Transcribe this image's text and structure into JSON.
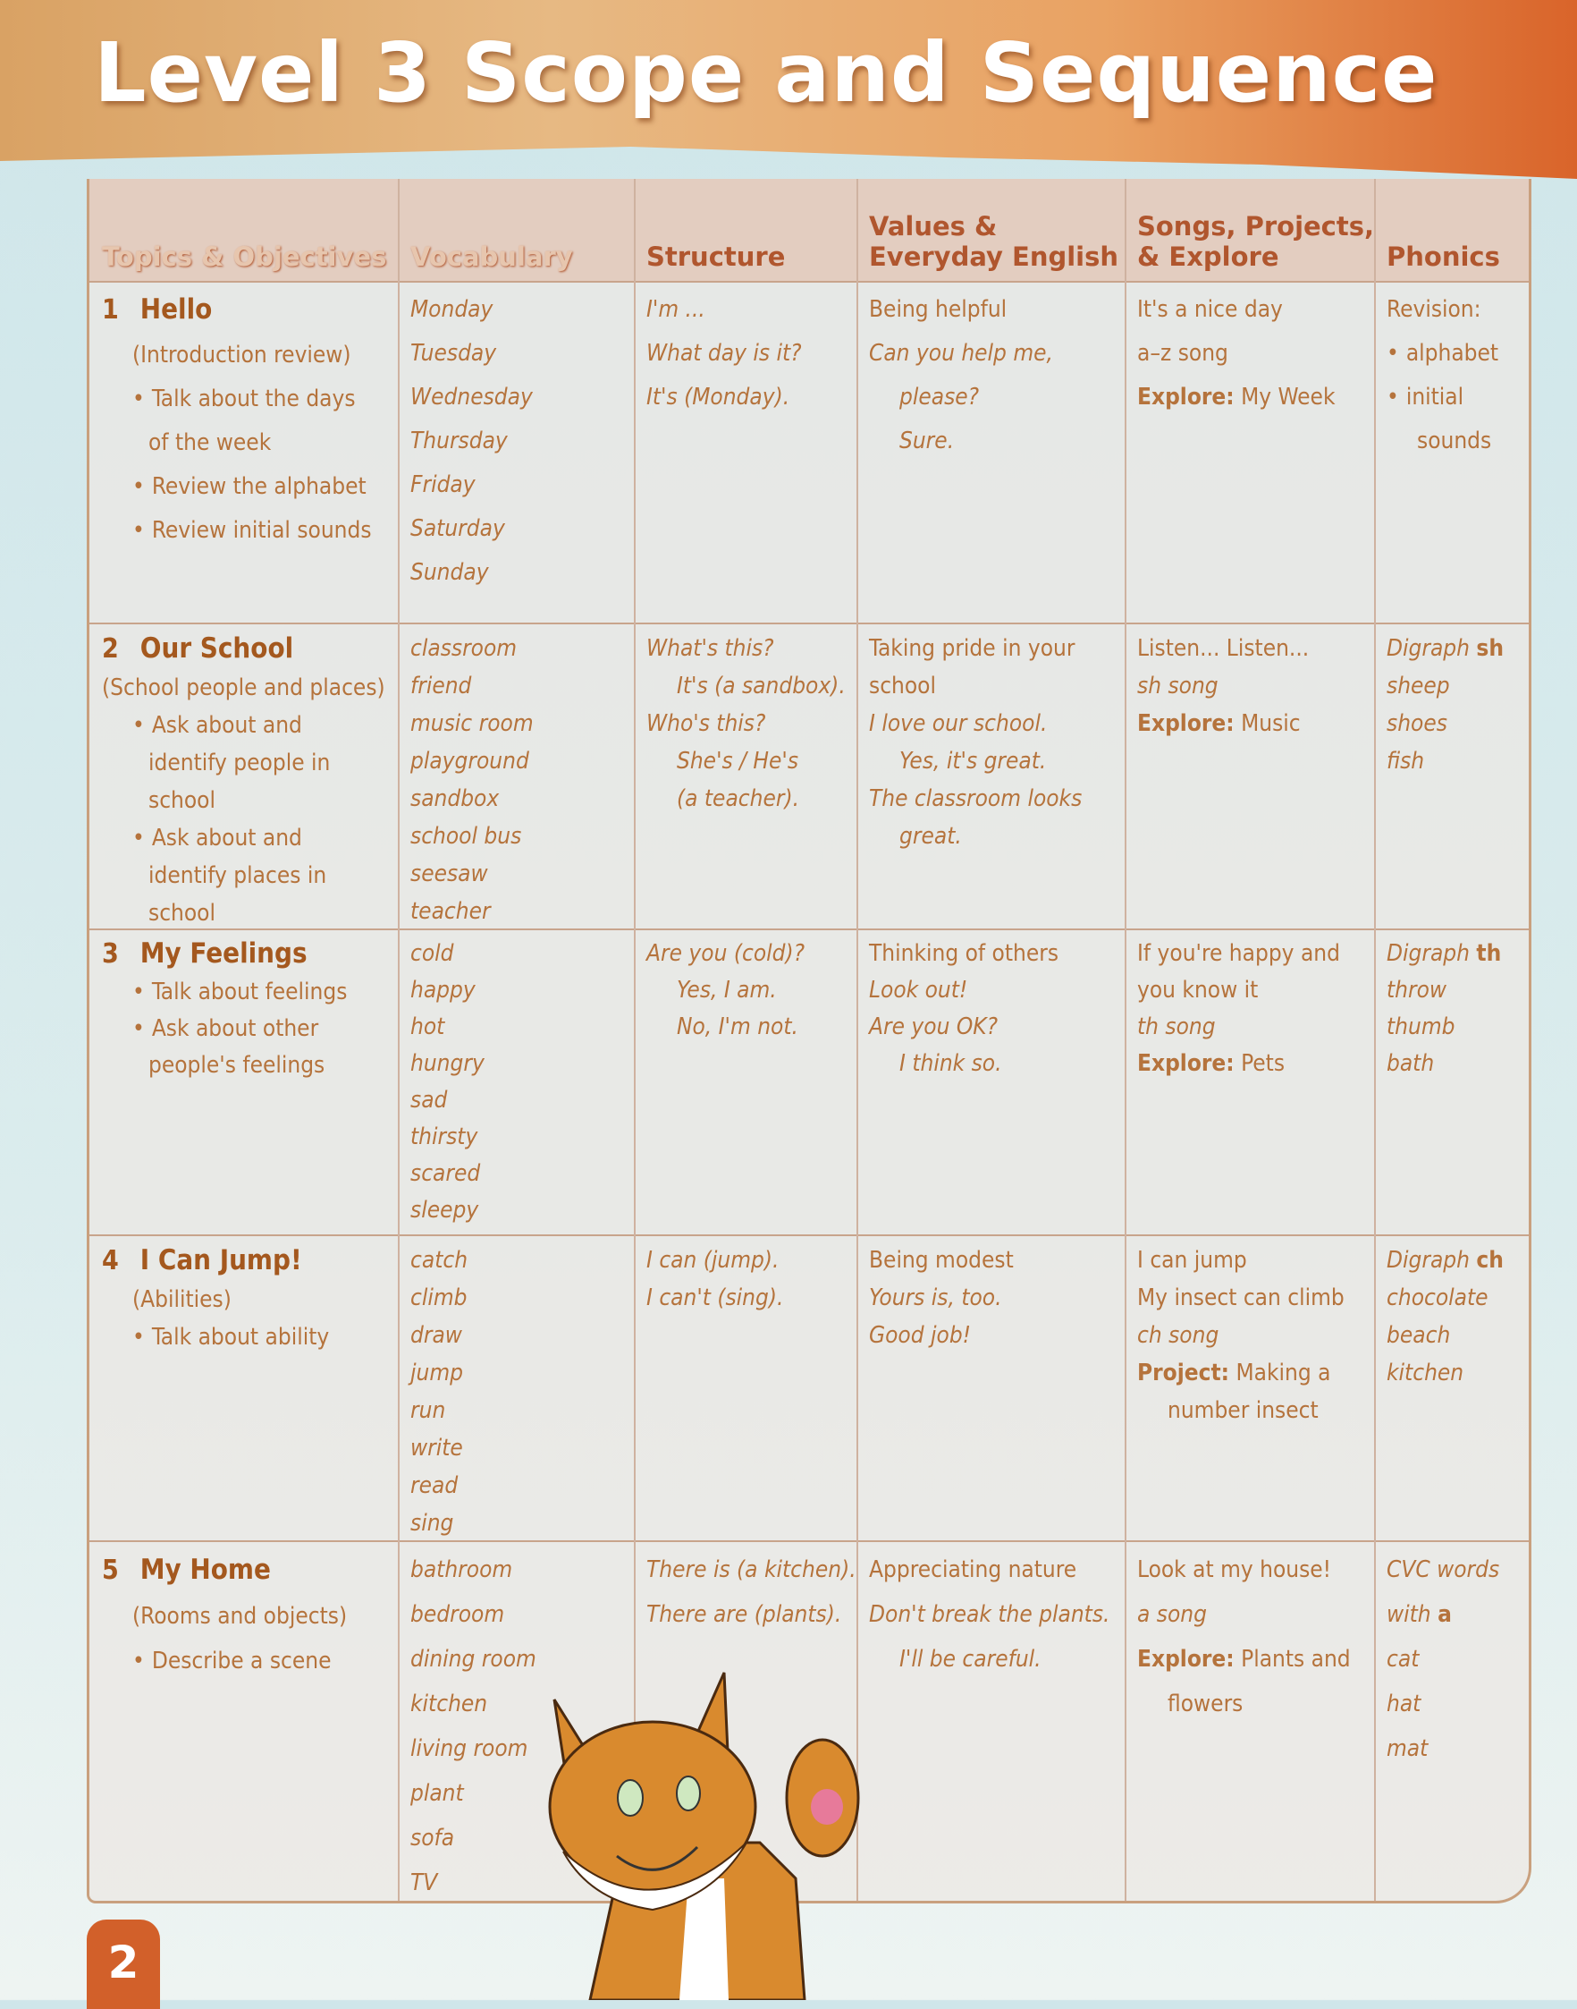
{
  "title": "Level 3 Scope and Sequence",
  "page_number": "2",
  "colors": {
    "banner": "#e3a86e",
    "accent": "#d2602a",
    "text": "#b5733c"
  },
  "headers": [
    "Topics & Objectives",
    "Vocabulary",
    "Structure",
    "Values &\nEveryday English",
    "Songs, Projects,\n& Explore",
    "Phonics"
  ],
  "rows": [
    {
      "num": "1",
      "title": "Hello",
      "topic": [
        {
          "t": "(Introduction review)",
          "c": "ind"
        },
        {
          "t": "Talk about the days",
          "c": "ind bul"
        },
        {
          "t": "of the week",
          "c": "ind2"
        },
        {
          "t": "Review the alphabet",
          "c": "ind bul"
        },
        {
          "t": "Review initial sounds",
          "c": "ind bul"
        }
      ],
      "vocab": [
        "Monday",
        "Tuesday",
        "Wednesday",
        "Thursday",
        "Friday",
        "Saturday",
        "Sunday"
      ],
      "structure": [
        {
          "t": "I'm ..."
        },
        {
          "t": "What day is it?"
        },
        {
          "t": "It's (Monday)."
        }
      ],
      "values": [
        {
          "t": "Being helpful",
          "n": 1
        },
        {
          "t": "Can you help me,"
        },
        {
          "t": "please?",
          "c": "ind"
        },
        {
          "t": "Sure.",
          "c": "ind"
        }
      ],
      "songs": [
        {
          "t": "It's a nice day"
        },
        {
          "t": "a–z song"
        },
        {
          "b": "Explore:",
          "t": " My Week"
        }
      ],
      "phonics": [
        {
          "t": "Revision:",
          "n": 1
        },
        {
          "t": "alphabet",
          "c": "bul",
          "n": 1
        },
        {
          "t": "initial",
          "c": "bul",
          "n": 1
        },
        {
          "t": "sounds",
          "c": "ind",
          "n": 1
        }
      ]
    },
    {
      "num": "2",
      "title": "Our School",
      "topic": [
        {
          "t": "(School people and places)"
        },
        {
          "t": "Ask about and",
          "c": "ind bul"
        },
        {
          "t": "identify people in",
          "c": "ind2"
        },
        {
          "t": "school",
          "c": "ind2"
        },
        {
          "t": "Ask about and",
          "c": "ind bul"
        },
        {
          "t": "identify places in",
          "c": "ind2"
        },
        {
          "t": "school",
          "c": "ind2"
        }
      ],
      "vocab": [
        "classroom",
        "friend",
        "music room",
        "playground",
        "sandbox",
        "school bus",
        "seesaw",
        "teacher"
      ],
      "structure": [
        {
          "t": "What's this?"
        },
        {
          "t": "It's (a sandbox).",
          "c": "ind"
        },
        {
          "t": "Who's this?"
        },
        {
          "t": "She's / He's",
          "c": "ind"
        },
        {
          "t": "(a teacher).",
          "c": "ind"
        }
      ],
      "values": [
        {
          "t": "Taking pride in your",
          "n": 1
        },
        {
          "t": "school",
          "n": 1
        },
        {
          "t": "I love our school."
        },
        {
          "t": "Yes, it's great.",
          "c": "ind"
        },
        {
          "t": "The classroom looks"
        },
        {
          "t": "great.",
          "c": "ind"
        }
      ],
      "songs": [
        {
          "t": "Listen... Listen..."
        },
        {
          "t": "sh song",
          "it": 1
        },
        {
          "b": "Explore:",
          "t": " Music"
        }
      ],
      "phonics": [
        {
          "t": "Digraph ",
          "b2": "sh"
        },
        {
          "t": "sheep"
        },
        {
          "t": "shoes"
        },
        {
          "t": "fish"
        }
      ]
    },
    {
      "num": "3",
      "title": "My Feelings",
      "topic": [
        {
          "t": "Talk about feelings",
          "c": "ind bul"
        },
        {
          "t": "Ask about other",
          "c": "ind bul"
        },
        {
          "t": "people's feelings",
          "c": "ind2"
        }
      ],
      "vocab": [
        "cold",
        "happy",
        "hot",
        "hungry",
        "sad",
        "thirsty",
        "scared",
        "sleepy"
      ],
      "structure": [
        {
          "t": "Are you (cold)?"
        },
        {
          "t": "Yes, I am.",
          "c": "ind"
        },
        {
          "t": "No, I'm not.",
          "c": "ind"
        }
      ],
      "values": [
        {
          "t": "Thinking of others",
          "n": 1
        },
        {
          "t": "Look out!"
        },
        {
          "t": "Are you OK?"
        },
        {
          "t": "I think so.",
          "c": "ind"
        }
      ],
      "songs": [
        {
          "t": "If you're happy and"
        },
        {
          "t": "you know it"
        },
        {
          "t": "th song",
          "it": 1
        },
        {
          "b": "Explore:",
          "t": " Pets"
        }
      ],
      "phonics": [
        {
          "t": "Digraph ",
          "b2": "th"
        },
        {
          "t": "throw"
        },
        {
          "t": "thumb"
        },
        {
          "t": "bath"
        }
      ]
    },
    {
      "num": "4",
      "title": "I Can Jump!",
      "topic": [
        {
          "t": "(Abilities)",
          "c": "ind"
        },
        {
          "t": "Talk about ability",
          "c": "ind bul"
        }
      ],
      "vocab": [
        "catch",
        "climb",
        "draw",
        "jump",
        "run",
        "write",
        "read",
        "sing"
      ],
      "structure": [
        {
          "t": "I can (jump)."
        },
        {
          "t": "I can't (sing)."
        }
      ],
      "values": [
        {
          "t": "Being modest",
          "n": 1
        },
        {
          "t": "Yours is, too."
        },
        {
          "t": "Good job!"
        }
      ],
      "songs": [
        {
          "t": "I can jump"
        },
        {
          "t": "My insect can climb"
        },
        {
          "t": "ch song",
          "it": 1
        },
        {
          "b": "Project:",
          "t": " Making a"
        },
        {
          "t": "number insect",
          "c": "ind"
        }
      ],
      "phonics": [
        {
          "t": "Digraph ",
          "b2": "ch"
        },
        {
          "t": "chocolate"
        },
        {
          "t": "beach"
        },
        {
          "t": "kitchen"
        }
      ]
    },
    {
      "num": "5",
      "title": "My Home",
      "topic": [
        {
          "t": "(Rooms and objects)",
          "c": "ind"
        },
        {
          "t": "Describe a scene",
          "c": "ind bul"
        }
      ],
      "vocab": [
        "bathroom",
        "bedroom",
        "dining room",
        "kitchen",
        "living room",
        "plant",
        "sofa",
        "TV"
      ],
      "structure": [
        {
          "t": "There is (a kitchen)."
        },
        {
          "t": "There are (plants)."
        }
      ],
      "values": [
        {
          "t": "Appreciating nature",
          "n": 1
        },
        {
          "t": "Don't break the plants."
        },
        {
          "t": "I'll be careful.",
          "c": "ind"
        }
      ],
      "songs": [
        {
          "t": "Look at my house!"
        },
        {
          "t": "a song",
          "it": 1
        },
        {
          "b": "Explore:",
          "t": " Plants and"
        },
        {
          "t": "flowers",
          "c": "ind"
        }
      ],
      "phonics": [
        {
          "t": "CVC words"
        },
        {
          "t": "with ",
          "b2": "a"
        },
        {
          "t": "cat"
        },
        {
          "t": "hat"
        },
        {
          "t": "mat"
        }
      ]
    }
  ]
}
